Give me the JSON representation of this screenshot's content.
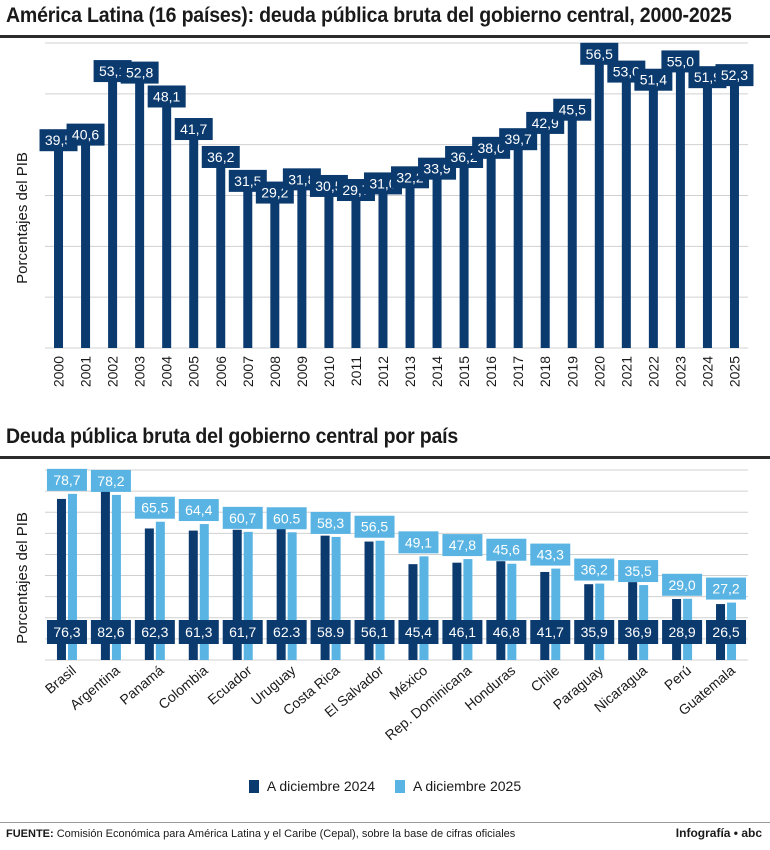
{
  "title1": "América Latina (16 países): deuda pública bruta del gobierno central, 2000-2025",
  "title2": "Deuda pública bruta del gobierno central por país",
  "footer_label": "FUENTE:",
  "footer_text": "Comisión Económica para América Latina y el Caribe (Cepal), sobre la base de cifras oficiales",
  "credit": "Infografía • abc",
  "colors": {
    "dark": "#0b3a6f",
    "light": "#59b4e3",
    "grid": "#d0d0d0"
  },
  "chart_data": [
    {
      "type": "bar",
      "ylabel": "Porcentajes del PIB",
      "ylim": [
        0,
        60
      ],
      "categories": [
        "2000",
        "2001",
        "2002",
        "2003",
        "2004",
        "2005",
        "2006",
        "2007",
        "2008",
        "2009",
        "2010",
        "2011",
        "2012",
        "2013",
        "2014",
        "2015",
        "2016",
        "2017",
        "2018",
        "2019",
        "2020",
        "2021",
        "2022",
        "2023",
        "2024",
        "2025"
      ],
      "values": [
        39.5,
        40.6,
        53.1,
        52.8,
        48.1,
        41.7,
        36.2,
        31.5,
        29.2,
        31.8,
        30.5,
        29.7,
        31.0,
        32.2,
        33.9,
        36.2,
        38.0,
        39.7,
        42.9,
        45.5,
        56.5,
        53.0,
        51.4,
        55.0,
        51.9,
        52.3
      ],
      "labels": [
        "39,5",
        "40,6",
        "53,1",
        "52,8",
        "48,1",
        "41,7",
        "36,2",
        "31,5",
        "29,2",
        "31,8",
        "30,5",
        "29,7",
        "31,0",
        "32,2",
        "33,9",
        "36,2",
        "38,0",
        "39,7",
        "42,9",
        "45,5",
        "56,5",
        "53,0",
        "51,4",
        "55,0",
        "51,9",
        "52,3"
      ]
    },
    {
      "type": "bar",
      "ylabel": "Porcentajes del PIB",
      "ylim": [
        0,
        90
      ],
      "categories": [
        "Brasil",
        "Argentina",
        "Panamá",
        "Colombia",
        "Ecuador",
        "Uruguay",
        "Costa Rica",
        "El Salvador",
        "México",
        "Rep. Dominicana",
        "Honduras",
        "Chile",
        "Paraguay",
        "Nicaragua",
        "Perú",
        "Guatemala"
      ],
      "series": [
        {
          "name": "A diciembre 2024",
          "values": [
            76.3,
            82.6,
            62.3,
            61.3,
            61.7,
            62.3,
            58.9,
            56.1,
            45.4,
            46.1,
            46.8,
            41.7,
            35.9,
            36.9,
            28.9,
            26.5
          ],
          "labels": [
            "76,3",
            "82,6",
            "62,3",
            "61,3",
            "61,7",
            "62.3",
            "58.9",
            "56,1",
            "45,4",
            "46,1",
            "46,8",
            "41,7",
            "35,9",
            "36,9",
            "28,9",
            "26,5"
          ]
        },
        {
          "name": "A diciembre 2025",
          "values": [
            78.7,
            78.2,
            65.5,
            64.4,
            60.7,
            60.5,
            58.3,
            56.5,
            49.1,
            47.8,
            45.6,
            43.3,
            36.2,
            35.5,
            29.0,
            27.2
          ],
          "labels": [
            "78,7",
            "78,2",
            "65,5",
            "64,4",
            "60,7",
            "60.5",
            "58,3",
            "56,5",
            "49,1",
            "47,8",
            "45,6",
            "43,3",
            "36,2",
            "35,5",
            "29,0",
            "27,2"
          ]
        }
      ]
    }
  ]
}
